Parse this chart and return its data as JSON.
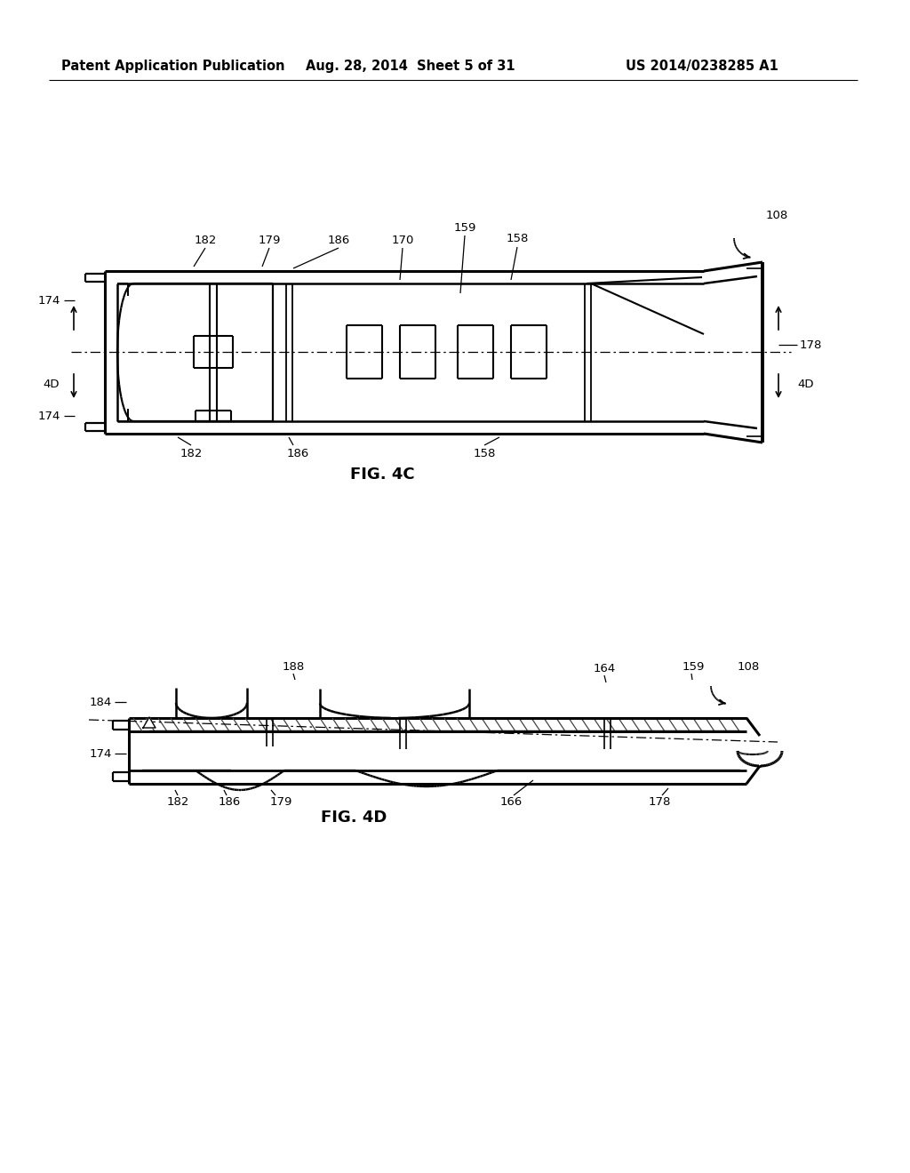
{
  "background_color": "#ffffff",
  "header_left": "Patent Application Publication",
  "header_center": "Aug. 28, 2014  Sheet 5 of 31",
  "header_right": "US 2014/0238285 A1",
  "fig4c_label": "FIG. 4C",
  "fig4d_label": "FIG. 4D"
}
